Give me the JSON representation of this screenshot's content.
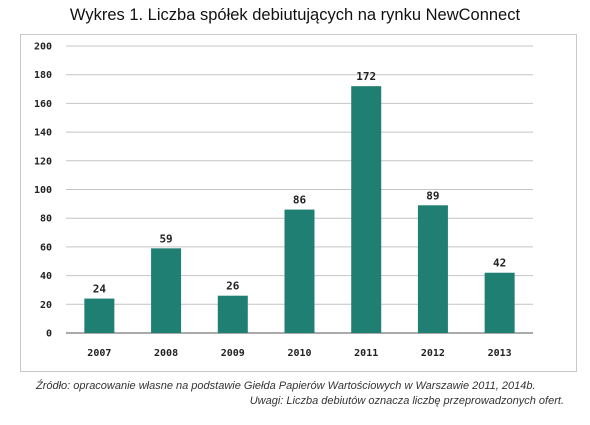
{
  "title": "Wykres 1. Liczba spółek debiutujących na rynku NewConnect",
  "colors": {
    "bar": "#1f7f73",
    "grid": "#c4c4c4",
    "axis": "#555555"
  },
  "footer": {
    "source": "Źródło: opracowanie własne na podstawie Giełda Papierów Wartościowych w Warszawie 2011, 2014b.",
    "note": "Uwagi: Liczba debiutów oznacza liczbę przeprowadzonych ofert."
  },
  "chart_data": {
    "type": "bar",
    "title": "Wykres 1. Liczba spółek debiutujących na rynku NewConnect",
    "categories": [
      "2007",
      "2008",
      "2009",
      "2010",
      "2011",
      "2012",
      "2013"
    ],
    "values": [
      24,
      59,
      26,
      86,
      172,
      89,
      42
    ],
    "ylim": [
      0,
      200
    ],
    "yticks": [
      0,
      20,
      40,
      60,
      80,
      100,
      120,
      140,
      160,
      180,
      200
    ],
    "grid": true,
    "legend": "none",
    "data_labels": true
  }
}
